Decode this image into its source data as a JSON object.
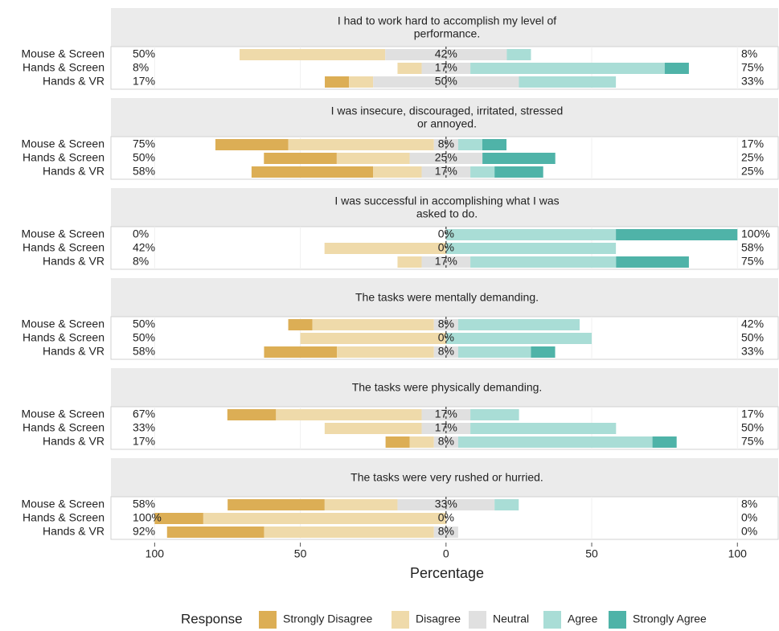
{
  "chart_data": {
    "type": "diverging-stacked-bar",
    "x_label": "Percentage",
    "xlim": [
      -115,
      114
    ],
    "xticks": [
      {
        "value": -100,
        "label": "100"
      },
      {
        "value": -50,
        "label": "50"
      },
      0,
      50,
      100
    ],
    "legend": {
      "title": "Response",
      "position": "bottom"
    },
    "series": [
      {
        "name": "Strongly Disagree",
        "color": "#dcae55"
      },
      {
        "name": "Disagree",
        "color": "#efdaaa"
      },
      {
        "name": "Neutral",
        "color": "#e0e0e0"
      },
      {
        "name": "Agree",
        "color": "#a9ddd6"
      },
      {
        "name": "Strongly Agree",
        "color": "#4fb3a8"
      }
    ],
    "panels": [
      {
        "title": [
          "I had to work hard to accomplish my level of",
          "performance."
        ],
        "categories": [
          "Mouse & Screen",
          "Hands & Screen",
          "Hands & VR"
        ],
        "values": [
          [
            0,
            50,
            41.7,
            8.3,
            0
          ],
          [
            0,
            8.3,
            16.7,
            66.7,
            8.3
          ],
          [
            8.3,
            8.3,
            50,
            33.3,
            0
          ]
        ],
        "summary": [
          [
            50,
            42,
            8
          ],
          [
            8,
            17,
            75
          ],
          [
            17,
            50,
            33
          ]
        ],
        "summary_labels": [
          [
            "50%",
            "42%",
            "8%"
          ],
          [
            "8%",
            "17%",
            "75%"
          ],
          [
            "17%",
            "50%",
            "33%"
          ]
        ]
      },
      {
        "title": [
          "I was insecure, discouraged, irritated, stressed",
          "or annoyed."
        ],
        "categories": [
          "Mouse & Screen",
          "Hands & Screen",
          "Hands & VR"
        ],
        "values": [
          [
            25,
            50,
            8.3,
            8.3,
            8.3
          ],
          [
            25,
            25,
            25,
            0,
            25
          ],
          [
            41.7,
            16.7,
            16.7,
            8.3,
            16.7
          ]
        ],
        "summary": [
          [
            75,
            8,
            17
          ],
          [
            50,
            25,
            25
          ],
          [
            58,
            17,
            25
          ]
        ],
        "summary_labels": [
          [
            "75%",
            "8%",
            "17%"
          ],
          [
            "50%",
            "25%",
            "25%"
          ],
          [
            "58%",
            "17%",
            "25%"
          ]
        ]
      },
      {
        "title": [
          "I was successful in accomplishing what I was",
          "asked to do."
        ],
        "categories": [
          "Mouse & Screen",
          "Hands & Screen",
          "Hands & VR"
        ],
        "values": [
          [
            0,
            0,
            0,
            58.3,
            41.7
          ],
          [
            0,
            41.7,
            0,
            58.3,
            0
          ],
          [
            0,
            8.3,
            16.7,
            50,
            25
          ]
        ],
        "summary": [
          [
            0,
            0,
            100
          ],
          [
            42,
            0,
            58
          ],
          [
            8,
            17,
            75
          ]
        ],
        "summary_labels": [
          [
            "0%",
            "0%",
            "100%"
          ],
          [
            "42%",
            "0%",
            "58%"
          ],
          [
            "8%",
            "17%",
            "75%"
          ]
        ]
      },
      {
        "title": [
          "The tasks were mentally demanding."
        ],
        "categories": [
          "Mouse & Screen",
          "Hands & Screen",
          "Hands & VR"
        ],
        "values": [
          [
            8.3,
            41.7,
            8.3,
            41.7,
            0
          ],
          [
            0,
            50,
            0,
            50,
            0
          ],
          [
            25,
            33.3,
            8.3,
            25,
            8.3
          ]
        ],
        "summary": [
          [
            50,
            8,
            42
          ],
          [
            50,
            0,
            50
          ],
          [
            58,
            8,
            33
          ]
        ],
        "summary_labels": [
          [
            "50%",
            "8%",
            "42%"
          ],
          [
            "50%",
            "0%",
            "50%"
          ],
          [
            "58%",
            "8%",
            "33%"
          ]
        ]
      },
      {
        "title": [
          "The tasks were physically demanding."
        ],
        "categories": [
          "Mouse & Screen",
          "Hands & Screen",
          "Hands & VR"
        ],
        "values": [
          [
            16.7,
            50,
            16.7,
            16.7,
            0
          ],
          [
            0,
            33.3,
            16.7,
            50,
            0
          ],
          [
            8.3,
            8.3,
            8.3,
            66.7,
            8.3
          ]
        ],
        "summary": [
          [
            67,
            17,
            17
          ],
          [
            33,
            17,
            50
          ],
          [
            17,
            8,
            75
          ]
        ],
        "summary_labels": [
          [
            "67%",
            "17%",
            "17%"
          ],
          [
            "33%",
            "17%",
            "50%"
          ],
          [
            "17%",
            "8%",
            "75%"
          ]
        ]
      },
      {
        "title": [
          "The tasks were very rushed or hurried."
        ],
        "categories": [
          "Mouse & Screen",
          "Hands & Screen",
          "Hands & VR"
        ],
        "values": [
          [
            33.3,
            25,
            33.3,
            8.3,
            0
          ],
          [
            16.7,
            83.3,
            0,
            0,
            0
          ],
          [
            33.3,
            58.3,
            8.3,
            0,
            0
          ]
        ],
        "summary": [
          [
            58,
            33,
            8
          ],
          [
            100,
            0,
            0
          ],
          [
            92,
            8,
            0
          ]
        ],
        "summary_labels": [
          [
            "58%",
            "33%",
            "8%"
          ],
          [
            "100%",
            "0%",
            "0%"
          ],
          [
            "92%",
            "8%",
            "0%"
          ]
        ]
      }
    ]
  }
}
